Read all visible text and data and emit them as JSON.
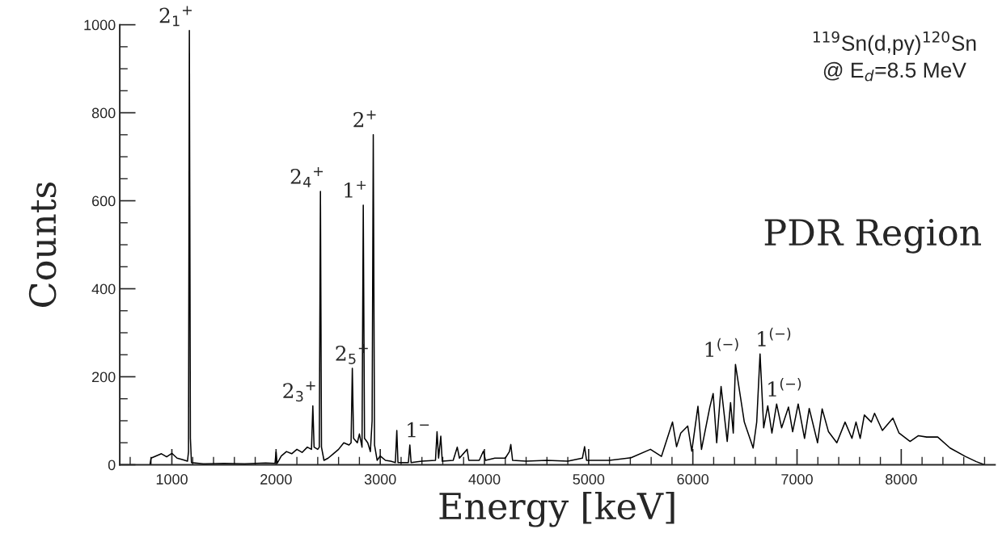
{
  "chart_data": {
    "type": "line",
    "title": "$^{119}$Sn(d,pγ)$^{120}$Sn",
    "subtitle": "@ E$_{d}$=8.5 MeV",
    "xlabel": "Energy [keV]",
    "ylabel": "Counts",
    "xlim": [
      500,
      8900
    ],
    "ylim": [
      0,
      1000
    ],
    "xticks": [
      {
        "value": 600,
        "label": null
      },
      {
        "value": 800,
        "label": null
      },
      1000,
      {
        "value": 1200,
        "label": null
      },
      {
        "value": 1400,
        "label": null
      },
      {
        "value": 1600,
        "label": null
      },
      {
        "value": 1800,
        "label": null
      },
      2000,
      {
        "value": 2200,
        "label": null
      },
      {
        "value": 2400,
        "label": null
      },
      {
        "value": 2600,
        "label": null
      },
      {
        "value": 2800,
        "label": null
      },
      3000,
      {
        "value": 3200,
        "label": null
      },
      {
        "value": 3400,
        "label": null
      },
      {
        "value": 3600,
        "label": null
      },
      {
        "value": 3800,
        "label": null
      },
      4000,
      {
        "value": 4200,
        "label": null
      },
      {
        "value": 4400,
        "label": null
      },
      {
        "value": 4600,
        "label": null
      },
      {
        "value": 4800,
        "label": null
      },
      5000,
      {
        "value": 5200,
        "label": null
      },
      {
        "value": 5400,
        "label": null
      },
      {
        "value": 5600,
        "label": null
      },
      {
        "value": 5800,
        "label": null
      },
      6000,
      {
        "value": 6200,
        "label": null
      },
      {
        "value": 6400,
        "label": null
      },
      {
        "value": 6600,
        "label": null
      },
      {
        "value": 6800,
        "label": null
      },
      7000,
      {
        "value": 7200,
        "label": null
      },
      {
        "value": 7400,
        "label": null
      },
      {
        "value": 7600,
        "label": null
      },
      {
        "value": 7800,
        "label": null
      },
      8000,
      {
        "value": 8200,
        "label": null
      },
      {
        "value": 8400,
        "label": null
      },
      {
        "value": 8600,
        "label": null
      },
      {
        "value": 8800,
        "label": null
      }
    ],
    "yticks": [
      0,
      {
        "value": 50,
        "label": null
      },
      {
        "value": 100,
        "label": null
      },
      {
        "value": 150,
        "label": null
      },
      200,
      {
        "value": 250,
        "label": null
      },
      {
        "value": 300,
        "label": null
      },
      {
        "value": 350,
        "label": null
      },
      400,
      {
        "value": 450,
        "label": null
      },
      {
        "value": 500,
        "label": null
      },
      {
        "value": 550,
        "label": null
      },
      600,
      {
        "value": 650,
        "label": null
      },
      {
        "value": 700,
        "label": null
      },
      {
        "value": 750,
        "label": null
      },
      800,
      {
        "value": 850,
        "label": null
      },
      {
        "value": 900,
        "label": null
      },
      {
        "value": 950,
        "label": null
      },
      1000
    ],
    "grid": false,
    "legend": false,
    "marker": "none",
    "line_style": "solid",
    "series": [
      {
        "color": "#000000",
        "x": [
          790,
          800,
          850,
          900,
          950,
          1000,
          1050,
          1100,
          1150,
          1160,
          1168,
          1178,
          1188,
          1300,
          1500,
          1700,
          1900,
          1990,
          2000,
          2010,
          2050,
          2100,
          2150,
          2200,
          2250,
          2300,
          2340,
          2353,
          2365,
          2400,
          2415,
          2426,
          2436,
          2460,
          2500,
          2550,
          2600,
          2650,
          2700,
          2720,
          2732,
          2744,
          2780,
          2800,
          2825,
          2837,
          2849,
          2880,
          2905,
          2922,
          2933,
          2945,
          2970,
          3000,
          3050,
          3100,
          3145,
          3159,
          3170,
          3270,
          3284,
          3296,
          3400,
          3530,
          3545,
          3560,
          3581,
          3595,
          3700,
          3739,
          3760,
          3834,
          3850,
          3950,
          3990,
          4010,
          4100,
          4200,
          4240,
          4253,
          4270,
          4400,
          4600,
          4800,
          4940,
          4961,
          4980,
          5200,
          5407,
          5593,
          5699,
          5805,
          5844,
          5884,
          5951,
          5990,
          6049,
          6083,
          6163,
          6195,
          6229,
          6271,
          6330,
          6362,
          6388,
          6409,
          6494,
          6579,
          6613,
          6645,
          6680,
          6719,
          6759,
          6804,
          6852,
          6918,
          6958,
          7011,
          7072,
          7117,
          7197,
          7241,
          7302,
          7382,
          7461,
          7527,
          7566,
          7606,
          7646,
          7713,
          7744,
          7819,
          7920,
          7979,
          8085,
          8165,
          8244,
          8350,
          8469,
          8615,
          8721,
          8801
        ],
        "values": [
          0,
          15,
          20,
          25,
          18,
          26,
          15,
          12,
          8,
          30,
          987,
          60,
          5,
          2,
          3,
          2,
          4,
          3,
          29,
          3,
          20,
          30,
          25,
          35,
          28,
          40,
          35,
          134,
          40,
          35,
          40,
          621,
          40,
          10,
          15,
          25,
          35,
          50,
          45,
          50,
          219,
          60,
          50,
          70,
          40,
          590,
          60,
          50,
          30,
          100,
          750,
          45,
          10,
          20,
          10,
          8,
          5,
          78,
          5,
          5,
          45,
          5,
          8,
          10,
          75,
          15,
          65,
          8,
          10,
          40,
          15,
          35,
          10,
          10,
          31,
          10,
          15,
          15,
          30,
          46,
          10,
          8,
          10,
          8,
          15,
          41,
          10,
          10,
          16,
          35,
          19,
          97,
          41,
          72,
          88,
          31,
          133,
          35,
          131,
          162,
          50,
          178,
          53,
          141,
          72,
          228,
          97,
          38,
          97,
          252,
          84,
          134,
          72,
          138,
          84,
          131,
          75,
          138,
          60,
          128,
          50,
          127,
          75,
          50,
          97,
          60,
          97,
          60,
          113,
          97,
          117,
          78,
          106,
          72,
          53,
          66,
          63,
          63,
          38,
          19,
          7,
          0
        ]
      }
    ],
    "annotations": [
      {
        "text": "2$_{1}$$^{+}$",
        "x": 1168,
        "y": 987
      },
      {
        "text": "2$_{3}$$^{+}$",
        "x": 2353,
        "y": 134
      },
      {
        "text": "2$_{4}$$^{+}$",
        "x": 2426,
        "y": 621
      },
      {
        "text": "2$_{5}$$^{+}$",
        "x": 2732,
        "y": 219
      },
      {
        "text": "1$^{+}$",
        "x": 2837,
        "y": 590
      },
      {
        "text": "2$^{+}$",
        "x": 2933,
        "y": 750
      },
      {
        "text": "1$^{−}$",
        "x": 3284,
        "y": 45
      },
      {
        "text": "1$^{(−)}$",
        "x": 6409,
        "y": 228
      },
      {
        "text": "1$^{(−)}$",
        "x": 6645,
        "y": 252
      },
      {
        "text": "1$^{(−)}$",
        "x": 7011,
        "y": 138
      },
      "PDR Region"
    ]
  }
}
